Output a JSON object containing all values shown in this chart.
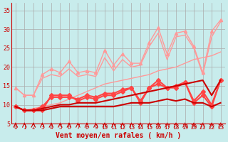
{
  "title": "",
  "xlabel": "Vent moyen/en rafales ( km/h )",
  "background_color": "#c8ecec",
  "grid_color": "#aaaaaa",
  "x_values": [
    0,
    1,
    2,
    3,
    4,
    5,
    6,
    7,
    8,
    9,
    10,
    11,
    12,
    13,
    14,
    15,
    16,
    17,
    18,
    19,
    20,
    21,
    22,
    23
  ],
  "ylim": [
    5,
    37
  ],
  "xlim": [
    -0.5,
    23.5
  ],
  "yticks": [
    5,
    10,
    15,
    20,
    25,
    30,
    35
  ],
  "series": [
    {
      "color": "#ff9999",
      "linewidth": 1.0,
      "marker": "^",
      "markersize": 3,
      "data": [
        14.5,
        12.5,
        12.5,
        18.0,
        19.5,
        18.5,
        21.5,
        18.5,
        19.0,
        18.5,
        24.5,
        20.5,
        23.5,
        21.0,
        21.0,
        26.5,
        30.5,
        23.5,
        29.0,
        29.5,
        25.5,
        18.5,
        29.5,
        32.5
      ]
    },
    {
      "color": "#ff9999",
      "linewidth": 1.0,
      "marker": null,
      "markersize": 0,
      "data": [
        9.5,
        8.5,
        9.0,
        9.5,
        10.0,
        10.5,
        11.5,
        12.5,
        13.5,
        14.5,
        15.5,
        16.0,
        16.5,
        17.0,
        17.5,
        18.0,
        19.0,
        19.5,
        20.0,
        21.0,
        22.0,
        22.5,
        23.0,
        24.0
      ]
    },
    {
      "color": "#ff9999",
      "linewidth": 1.0,
      "marker": null,
      "markersize": 0,
      "data": [
        14.5,
        12.5,
        12.5,
        17.0,
        18.0,
        17.5,
        19.5,
        17.5,
        18.0,
        17.5,
        22.5,
        19.0,
        22.0,
        20.0,
        20.5,
        25.5,
        29.0,
        22.0,
        28.0,
        28.5,
        25.0,
        18.0,
        28.0,
        32.0
      ]
    },
    {
      "color": "#ff4444",
      "linewidth": 1.5,
      "marker": "D",
      "markersize": 3,
      "data": [
        9.5,
        8.5,
        8.5,
        8.5,
        12.5,
        12.5,
        12.5,
        11.0,
        12.0,
        11.5,
        12.5,
        12.5,
        13.5,
        14.5,
        10.5,
        14.5,
        16.5,
        14.5,
        14.5,
        16.0,
        10.5,
        12.5,
        9.5,
        16.5
      ]
    },
    {
      "color": "#ff4444",
      "linewidth": 1.5,
      "marker": "D",
      "markersize": 3,
      "data": [
        9.5,
        8.5,
        8.5,
        9.5,
        12.0,
        12.0,
        12.0,
        11.5,
        12.5,
        12.0,
        13.0,
        13.0,
        14.0,
        14.5,
        11.0,
        14.5,
        15.5,
        14.5,
        15.0,
        16.0,
        11.0,
        13.5,
        10.0,
        16.5
      ]
    },
    {
      "color": "#cc0000",
      "linewidth": 1.5,
      "marker": null,
      "markersize": 0,
      "data": [
        9.5,
        8.5,
        8.5,
        8.5,
        9.0,
        9.5,
        9.5,
        9.5,
        9.5,
        9.5,
        9.5,
        9.5,
        10.0,
        10.5,
        10.5,
        10.5,
        11.0,
        11.5,
        11.0,
        11.5,
        10.5,
        10.5,
        9.5,
        10.5
      ]
    },
    {
      "color": "#cc0000",
      "linewidth": 1.5,
      "marker": null,
      "markersize": 0,
      "data": [
        9.5,
        8.5,
        8.5,
        9.0,
        9.5,
        10.0,
        10.0,
        10.5,
        10.5,
        10.5,
        11.0,
        11.5,
        12.0,
        12.5,
        13.0,
        13.5,
        14.0,
        14.5,
        15.0,
        15.5,
        16.0,
        16.5,
        12.5,
        16.5
      ]
    }
  ]
}
